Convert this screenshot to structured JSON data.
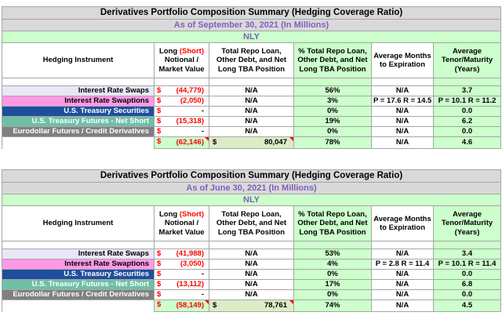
{
  "header_labels": {
    "instrument": "Hedging Instrument",
    "long": "Long",
    "short": "(Short)",
    "notional": "Notional /",
    "market_value": "Market Value",
    "repo": "Total Repo Loan, Other Debt, and Net Long TBA Position",
    "pct": "% Total Repo Loan, Other Debt, and Net Long TBA Position",
    "months": "Average Months to Expiration",
    "tenor": "Average Tenor/Maturity (Years)"
  },
  "currency": "$",
  "instruments": [
    "Interest Rate Swaps",
    "Interest Rate Swaptions",
    "U.S. Treasury Securities",
    "U.S. Treasury Futures - Net Short",
    "Eurodollar Futures / Credit Derivatives"
  ],
  "tables": [
    {
      "title": "Derivatives Portfolio Composition Summary (Hedging Coverage Ratio)",
      "as_of": "As of September 30, 2021 (In Millions)",
      "entity": "NLY",
      "rows": [
        {
          "value": "(44,779)",
          "repo": "N/A",
          "pct": "56%",
          "months": "N/A",
          "tenor": "3.7"
        },
        {
          "value": "(2,050)",
          "repo": "N/A",
          "pct": "3%",
          "months": "P = 17.6   R = 14.5",
          "tenor": "P = 10.1   R = 11.2"
        },
        {
          "value": "-",
          "repo": "N/A",
          "pct": "0%",
          "months": "N/A",
          "tenor": "0.0"
        },
        {
          "value": "(15,318)",
          "repo": "N/A",
          "pct": "19%",
          "months": "N/A",
          "tenor": "6.2"
        },
        {
          "value": "-",
          "repo": "N/A",
          "pct": "0%",
          "months": "N/A",
          "tenor": "0.0"
        }
      ],
      "total": {
        "value": "(62,146)",
        "repo": "80,047",
        "pct": "78%",
        "months": "N/A",
        "tenor": "4.6"
      }
    },
    {
      "title": "Derivatives Portfolio Composition Summary (Hedging Coverage Ratio)",
      "as_of": "As of June 30, 2021 (In Millions)",
      "entity": "NLY",
      "rows": [
        {
          "value": "(41,988)",
          "repo": "N/A",
          "pct": "53%",
          "months": "N/A",
          "tenor": "3.4"
        },
        {
          "value": "(3,050)",
          "repo": "N/A",
          "pct": "4%",
          "months": "P = 2.8   R = 11.4",
          "tenor": "P = 10.1   R = 11.4"
        },
        {
          "value": "-",
          "repo": "N/A",
          "pct": "0%",
          "months": "N/A",
          "tenor": "0.0"
        },
        {
          "value": "(13,112)",
          "repo": "N/A",
          "pct": "17%",
          "months": "N/A",
          "tenor": "6.8"
        },
        {
          "value": "-",
          "repo": "N/A",
          "pct": "0%",
          "months": "N/A",
          "tenor": "0.0"
        }
      ],
      "total": {
        "value": "(58,149)",
        "repo": "78,761",
        "pct": "74%",
        "months": "N/A",
        "tenor": "4.5"
      }
    }
  ],
  "colors": {
    "swap": "#e8e6f7",
    "swaption": "#ff99e6",
    "ust": "#1f4e9e",
    "usfut": "#6fbfa6",
    "euro": "#808080",
    "green": "#ccffcc",
    "negative": "#ff0000"
  }
}
